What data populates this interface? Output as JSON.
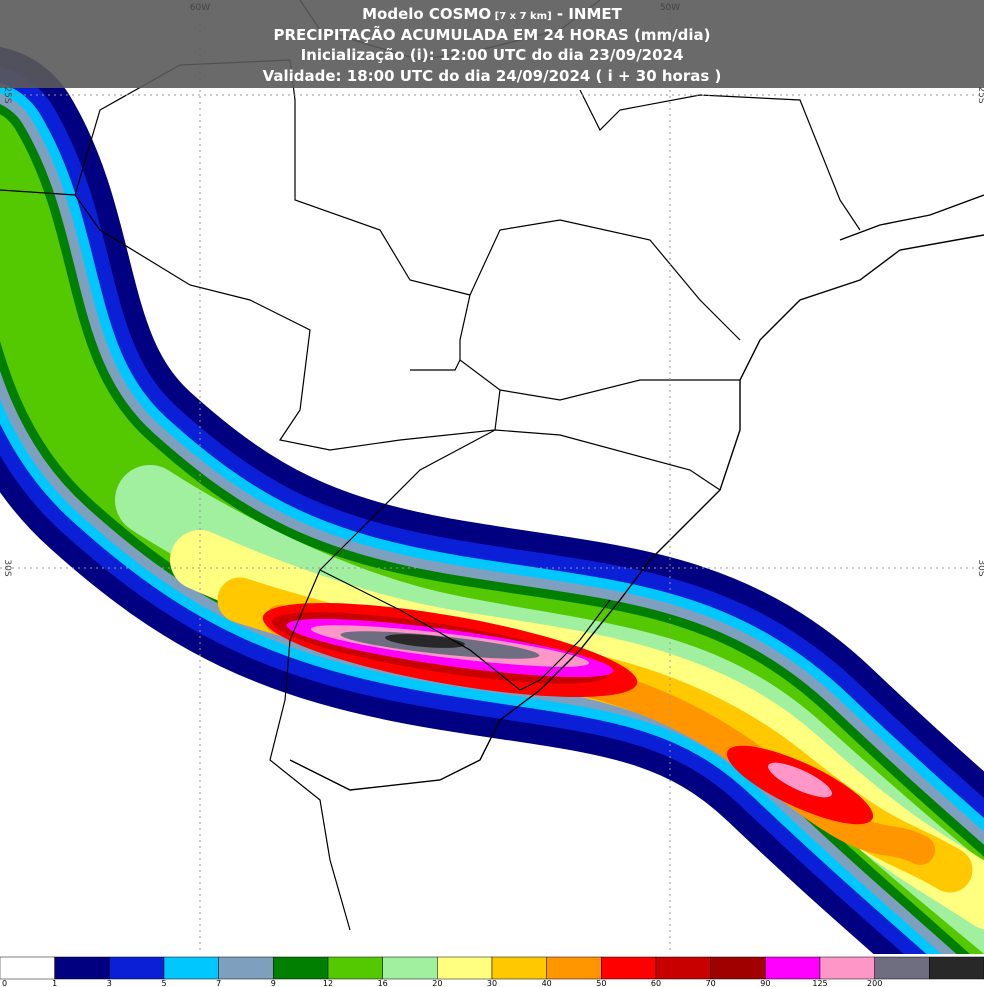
{
  "header": {
    "model": "Modelo COSMO",
    "resolution": "[7 x 7 km]",
    "source": "- INMET",
    "title": "PRECIPITAÇÃO ACUMULADA EM 24 HORAS (mm/dia)",
    "init": "Inicialização (i): 12:00 UTC do dia 23/09/2024",
    "valid": "Validade: 18:00 UTC do dia 24/09/2024 ( i + 30 horas )"
  },
  "grid_labels": {
    "lon": [
      "60W",
      "50W"
    ],
    "lat": [
      "25S",
      "30S"
    ]
  },
  "legend": [
    {
      "label": "0",
      "color": "#ffffff"
    },
    {
      "label": "1",
      "color": "#000080"
    },
    {
      "label": "3",
      "color": "#0a1fd6"
    },
    {
      "label": "5",
      "color": "#00c8ff"
    },
    {
      "label": "7",
      "color": "#7f9fbf"
    },
    {
      "label": "9",
      "color": "#007f00"
    },
    {
      "label": "12",
      "color": "#54c800"
    },
    {
      "label": "16",
      "color": "#a0f0a0"
    },
    {
      "label": "20",
      "color": "#ffff80"
    },
    {
      "label": "30",
      "color": "#ffc800"
    },
    {
      "label": "40",
      "color": "#ff9600"
    },
    {
      "label": "50",
      "color": "#ff0000"
    },
    {
      "label": "60",
      "color": "#c80000"
    },
    {
      "label": "70",
      "color": "#a00000"
    },
    {
      "label": "90",
      "color": "#ff00ff"
    },
    {
      "label": "125",
      "color": "#ff96c8"
    },
    {
      "label": "200",
      "color": "#6e6e80"
    },
    {
      "color": "#282828"
    }
  ]
}
